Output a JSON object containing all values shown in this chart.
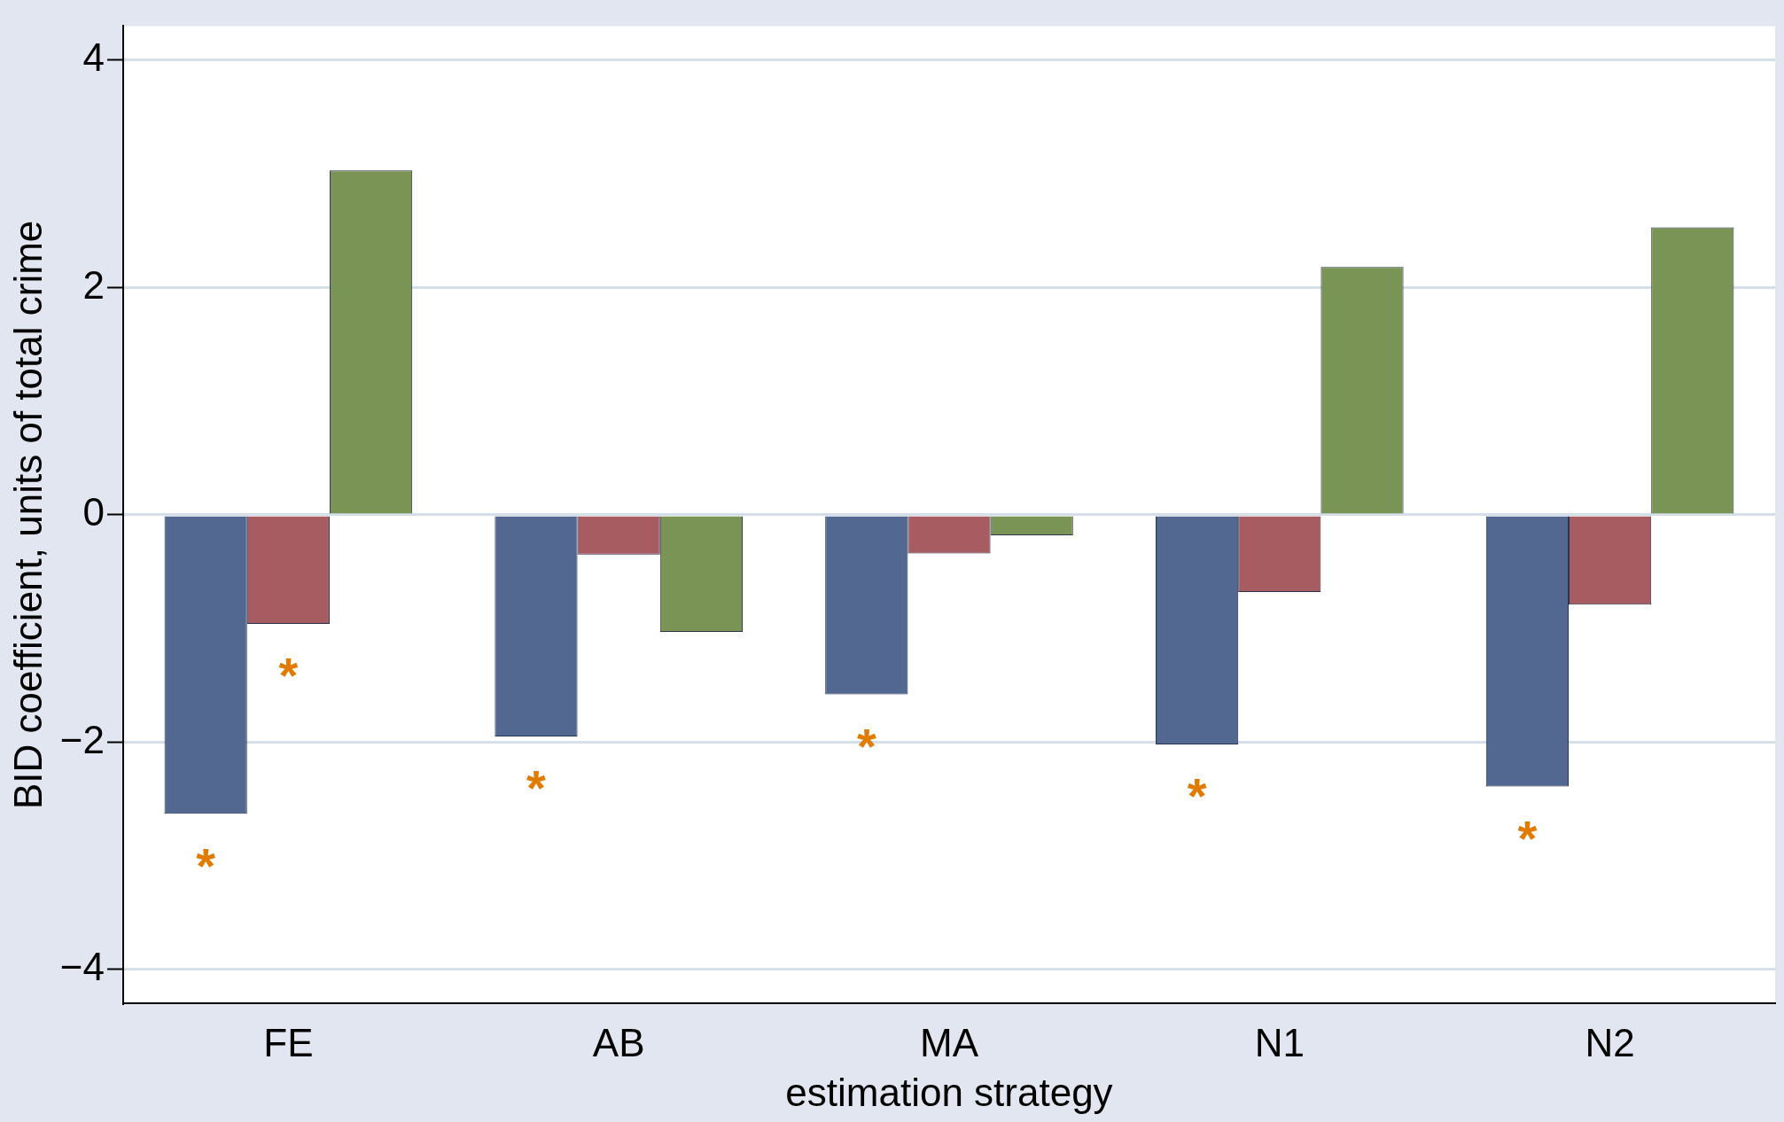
{
  "chart_data": {
    "type": "bar",
    "xlabel": "estimation strategy",
    "ylabel": "BID coefficient, units of total crime",
    "categories": [
      "FE",
      "AB",
      "MA",
      "N1",
      "N2"
    ],
    "series": [
      {
        "color": "#536890",
        "values": [
          -2.63,
          -1.95,
          -1.58,
          -2.02,
          -2.39
        ]
      },
      {
        "color": "#a65c60",
        "values": [
          -0.96,
          -0.35,
          -0.34,
          -0.68,
          -0.79
        ]
      },
      {
        "color": "#7a9456",
        "values": [
          3.03,
          -1.03,
          -0.18,
          2.18,
          2.53
        ]
      }
    ],
    "ylim": [
      -4.3,
      4.3
    ],
    "yticks": [
      -4,
      -2,
      0,
      2,
      4
    ],
    "grid": "y",
    "legend": false,
    "annotations": [
      "*",
      "*",
      "*",
      "*",
      "*",
      "*"
    ]
  }
}
